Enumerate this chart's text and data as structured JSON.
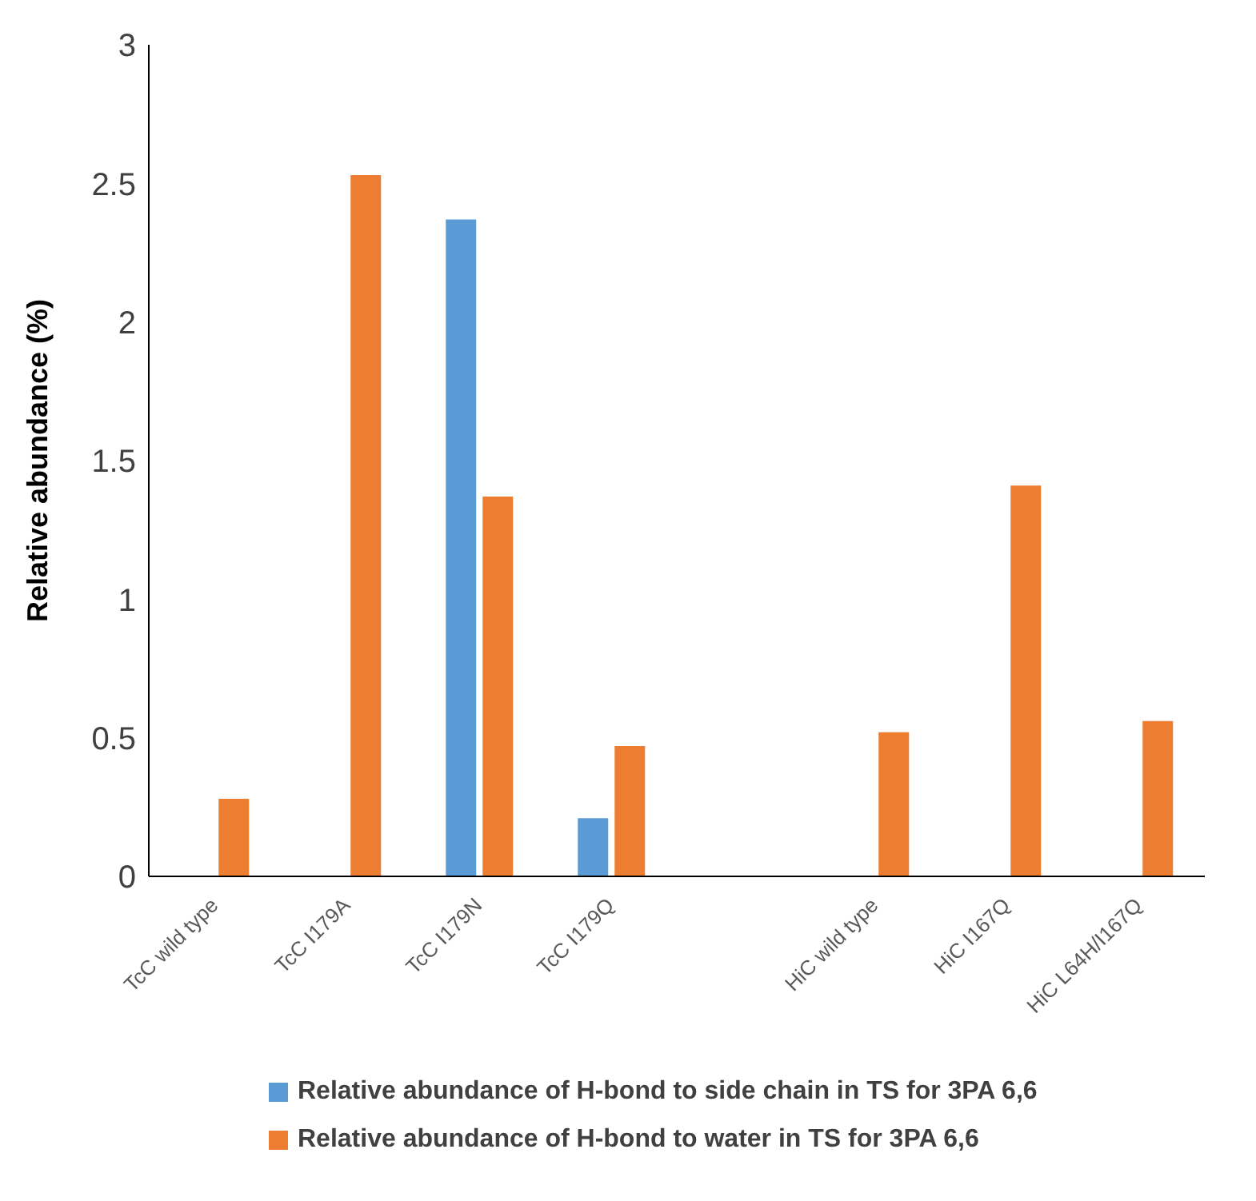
{
  "chart_data": {
    "type": "bar",
    "ylabel": "Relative abundance (%)",
    "categories": [
      "TcC wild type",
      "TcC I179A",
      "TcC I179N",
      "TcC I179Q",
      null,
      "HiC wild type",
      "HiC I167Q",
      "HiC L64H/I167Q"
    ],
    "series": [
      {
        "name": "Relative abundance of H-bond to side chain in TS for 3PA 6,6",
        "color": "#5b9bd5",
        "values": [
          null,
          null,
          2.37,
          0.21,
          null,
          null,
          null,
          null
        ]
      },
      {
        "name": "Relative abundance of H-bond to water in TS for 3PA 6,6",
        "color": "#ed7d31",
        "values": [
          0.28,
          2.53,
          1.37,
          0.47,
          null,
          0.52,
          1.41,
          0.56
        ]
      }
    ],
    "ylim": [
      0,
      3
    ],
    "yticks": [
      0,
      0.5,
      1,
      1.5,
      2,
      2.5,
      3
    ],
    "grid": false,
    "legend": "bottom"
  }
}
